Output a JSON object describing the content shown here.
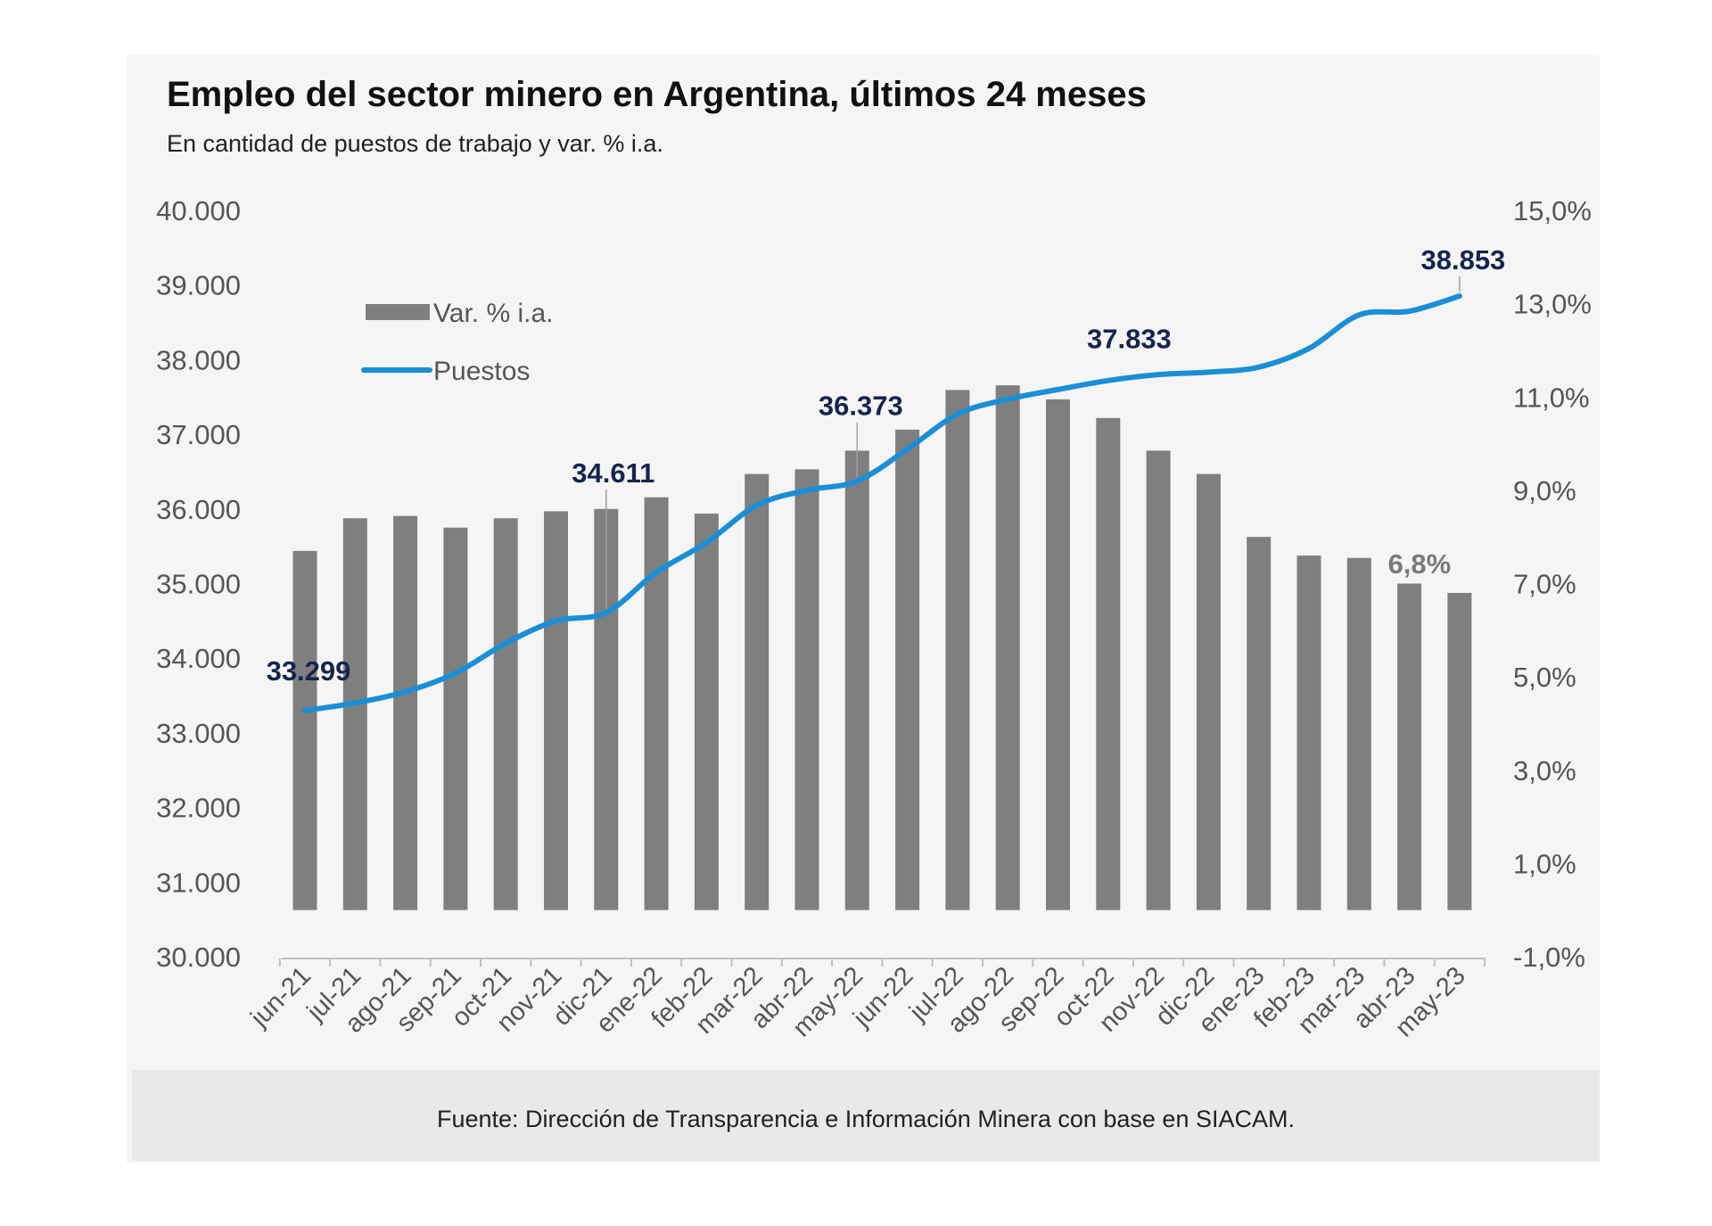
{
  "header": {
    "title": "Empleo del sector minero en Argentina, últimos 24 meses",
    "subtitle": "En cantidad de puestos de trabajo y var. % i.a."
  },
  "footer": {
    "source": "Fuente: Dirección de Transparencia e Información Minera con base en SIACAM."
  },
  "colors": {
    "bar": "#7f7f7f",
    "line": "#1a8fd6",
    "annotation": "#16244f",
    "axis_text": "#555555"
  },
  "chart_data": {
    "type": "bar+line",
    "categories": [
      "jun-21",
      "jul-21",
      "ago-21",
      "sep-21",
      "oct-21",
      "nov-21",
      "dic-21",
      "ene-22",
      "feb-22",
      "mar-22",
      "abr-22",
      "may-22",
      "jun-22",
      "jul-22",
      "ago-22",
      "sep-22",
      "oct-22",
      "nov-22",
      "dic-22",
      "ene-23",
      "feb-23",
      "mar-23",
      "abr-23",
      "may-23"
    ],
    "series": [
      {
        "name": "Var. % i.a.",
        "type": "bar",
        "axis": "right",
        "values": [
          7.7,
          8.4,
          8.45,
          8.2,
          8.4,
          8.55,
          8.6,
          8.85,
          8.5,
          9.35,
          9.45,
          9.85,
          10.3,
          11.15,
          11.25,
          10.95,
          10.55,
          9.85,
          9.35,
          8.0,
          7.6,
          7.55,
          7.0,
          6.8
        ]
      },
      {
        "name": "Puestos",
        "type": "line",
        "axis": "left",
        "values": [
          33299,
          33400,
          33550,
          33800,
          34200,
          34500,
          34611,
          35150,
          35550,
          36050,
          36250,
          36373,
          36800,
          37270,
          37470,
          37600,
          37720,
          37800,
          37833,
          37900,
          38150,
          38600,
          38650,
          38853
        ]
      }
    ],
    "left_axis": {
      "min": 30000,
      "max": 40000,
      "step": 1000,
      "tick_labels": [
        "30.000",
        "31.000",
        "32.000",
        "33.000",
        "34.000",
        "35.000",
        "36.000",
        "37.000",
        "38.000",
        "39.000",
        "40.000"
      ]
    },
    "right_axis": {
      "min": -1.0,
      "max": 15.0,
      "step": 2.0,
      "tick_labels": [
        "-1,0%",
        "1,0%",
        "3,0%",
        "5,0%",
        "7,0%",
        "9,0%",
        "11,0%",
        "13,0%",
        "15,0%"
      ]
    },
    "legend": [
      {
        "label": "Var. % i.a.",
        "kind": "bar"
      },
      {
        "label": "Puestos",
        "kind": "line"
      }
    ],
    "legend_position": "top-left",
    "annotations": [
      {
        "index": 0,
        "series": "Puestos",
        "text": "33.299"
      },
      {
        "index": 6,
        "series": "Puestos",
        "text": "34.611"
      },
      {
        "index": 11,
        "series": "Puestos",
        "text": "36.373"
      },
      {
        "index": 18,
        "series": "Puestos",
        "text": "37.833"
      },
      {
        "index": 23,
        "series": "Puestos",
        "text": "38.853"
      },
      {
        "index": 23,
        "series": "Var. % i.a.",
        "text": "6,8%"
      }
    ]
  }
}
